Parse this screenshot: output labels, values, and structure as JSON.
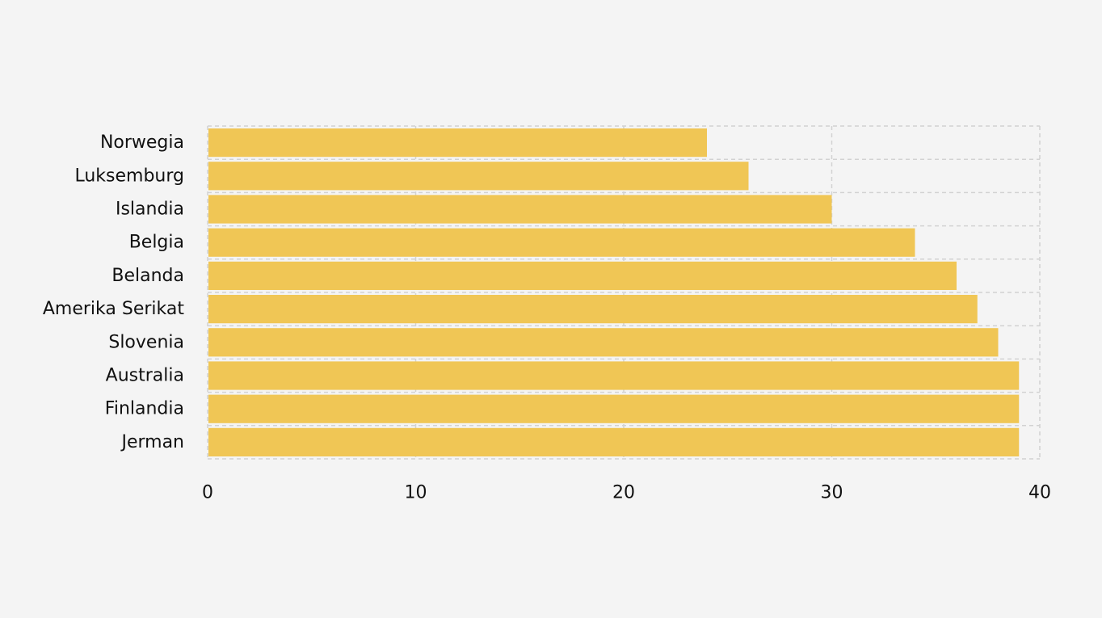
{
  "chart_data": {
    "type": "bar",
    "orientation": "horizontal",
    "categories": [
      "Norwegia",
      "Luksemburg",
      "Islandia",
      "Belgia",
      "Belanda",
      "Amerika Serikat",
      "Slovenia",
      "Australia",
      "Finlandia",
      "Jerman"
    ],
    "values": [
      24,
      26,
      30,
      34,
      36,
      37,
      38,
      39,
      39,
      39
    ],
    "title": "",
    "xlabel": "",
    "ylabel": "",
    "xlim": [
      0,
      40
    ],
    "x_ticks": [
      "0",
      "10",
      "20",
      "30",
      "40"
    ],
    "grid": true,
    "bar_color": "#f0c655",
    "background_color": "#f4f4f4",
    "grid_color": "#d2d2d2"
  }
}
